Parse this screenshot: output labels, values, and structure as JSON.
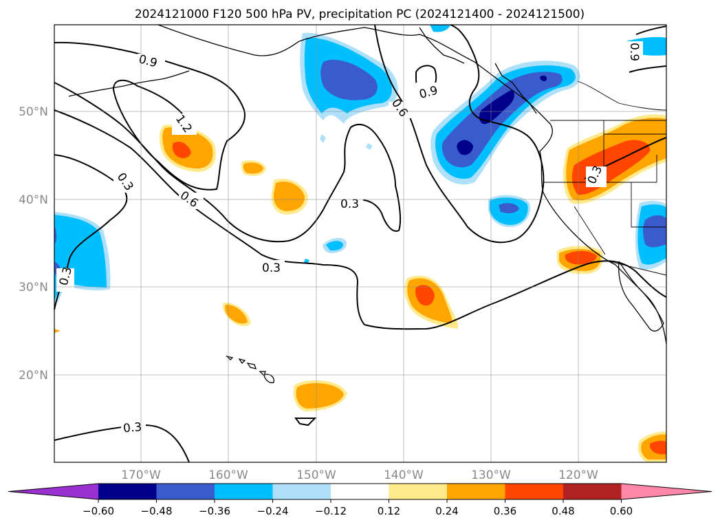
{
  "title": "2024121000 F120 500 hPa PV, precipitation PC (2024121400 - 2024121500)",
  "map": {
    "lat_labels": [
      "50°N",
      "40°N",
      "30°N",
      "20°N"
    ],
    "lon_labels": [
      "170°W",
      "160°W",
      "150°W",
      "140°W",
      "130°W",
      "120°W"
    ],
    "contour_labels": [
      "0.9",
      "0.9",
      "0.9",
      "1.2",
      "0.6",
      "0.6",
      "0.3",
      "0.3",
      "0.3",
      "0.3",
      "0.3",
      "0.3"
    ]
  },
  "colorbar": {
    "tick_labels": [
      "−0.60",
      "−0.48",
      "−0.36",
      "−0.24",
      "−0.12",
      "0.12",
      "0.24",
      "0.36",
      "0.48",
      "0.60"
    ],
    "colors": [
      "#9b30d0",
      "#00008b",
      "#3a5bcc",
      "#00bfff",
      "#aee0fa",
      "#ffffff",
      "#ffe98a",
      "#ffa500",
      "#ff4500",
      "#b22222",
      "#ff88aa"
    ]
  }
}
